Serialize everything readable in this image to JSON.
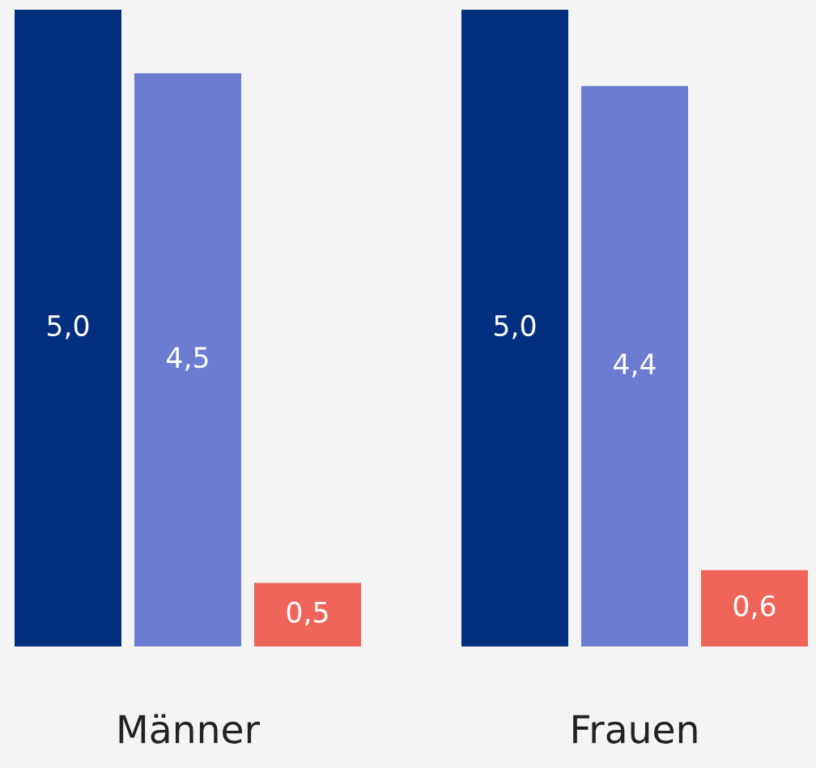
{
  "chart_data": {
    "type": "bar",
    "categories": [
      "Männer",
      "Frauen"
    ],
    "series": [
      {
        "color": "#03307e",
        "values": [
          5.0,
          5.0
        ],
        "value_labels": [
          "5,0",
          "5,0"
        ]
      },
      {
        "color": "#6b7dd1",
        "values": [
          4.5,
          4.4
        ],
        "value_labels": [
          "4,5",
          "4,4"
        ]
      },
      {
        "color": "#f0655a",
        "values": [
          0.5,
          0.6
        ],
        "value_labels": [
          "0,5",
          "0,6"
        ]
      }
    ],
    "tick_labels": "x"
  }
}
